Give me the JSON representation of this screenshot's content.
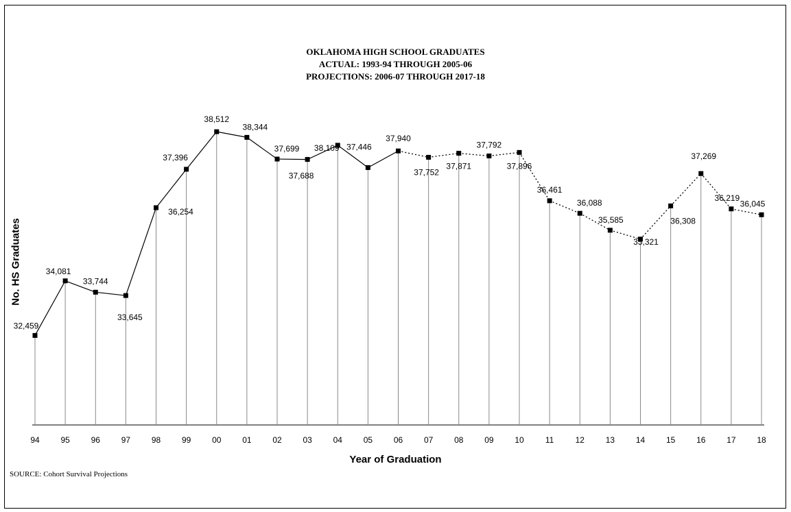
{
  "chart_data": {
    "type": "line",
    "title_lines": [
      "OKLAHOMA HIGH SCHOOL GRADUATES",
      "ACTUAL:  1993-94 THROUGH 2005-06",
      "PROJECTIONS:  2006-07 THROUGH 2017-18"
    ],
    "xlabel": "Year of Graduation",
    "ylabel": "No. HS Graduates",
    "source": "SOURCE:  Cohort Survival Projections",
    "categories": [
      "94",
      "95",
      "96",
      "97",
      "98",
      "99",
      "00",
      "01",
      "02",
      "03",
      "04",
      "05",
      "06",
      "07",
      "08",
      "09",
      "10",
      "11",
      "12",
      "13",
      "14",
      "15",
      "16",
      "17",
      "18"
    ],
    "values": [
      32459,
      34081,
      33744,
      33645,
      36254,
      37396,
      38512,
      38344,
      37699,
      37688,
      38109,
      37446,
      37940,
      37752,
      37871,
      37792,
      37896,
      36461,
      36088,
      35585,
      35321,
      36308,
      37269,
      36219,
      36045
    ],
    "value_labels": [
      "32,459",
      "34,081",
      "33,744",
      "33,645",
      "36,254",
      "37,396",
      "38,512",
      "38,344",
      "37,699",
      "37,688",
      "38,109",
      "37,446",
      "37,940",
      "37,752",
      "37,871",
      "37,792",
      "37,896",
      "36,461",
      "36,088",
      "35,585",
      "35,321",
      "36,308",
      "37,269",
      "36,219",
      "36,045"
    ],
    "actual_last_index": 12,
    "series_styles": {
      "actual": "solid",
      "projection": "dotted"
    },
    "ylim": [
      29800,
      38800
    ],
    "grid": false,
    "drop_lines": true,
    "marker": "square",
    "line_color": "#000000",
    "drop_line_color": "#888888"
  }
}
